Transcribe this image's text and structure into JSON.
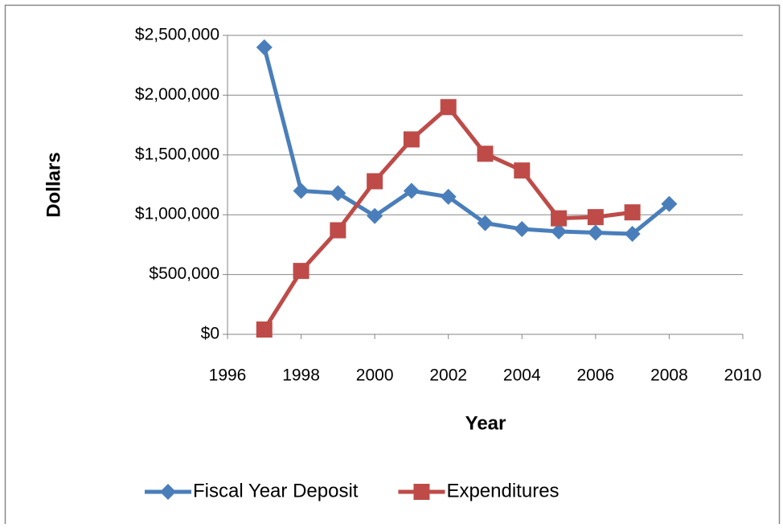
{
  "chart_data": {
    "type": "line",
    "x_label": "Year",
    "y_label": "Dollars",
    "x": [
      1997,
      1998,
      1999,
      2000,
      2001,
      2002,
      2003,
      2004,
      2005,
      2006,
      2007,
      2008
    ],
    "series": [
      {
        "name": "Fiscal Year Deposit",
        "color": "#4a7ebb",
        "marker": "diamond",
        "values": [
          2400000,
          1200000,
          1180000,
          990000,
          1200000,
          1150000,
          930000,
          880000,
          860000,
          850000,
          840000,
          1090000
        ]
      },
      {
        "name": "Expenditures",
        "color": "#be4b48",
        "marker": "square",
        "values": [
          40000,
          530000,
          870000,
          1280000,
          1630000,
          1900000,
          1510000,
          1370000,
          970000,
          980000,
          1020000,
          null
        ]
      }
    ],
    "xlim": [
      1996,
      2010
    ],
    "xticks": [
      1996,
      1998,
      2000,
      2002,
      2004,
      2006,
      2008,
      2010
    ],
    "ylim": [
      0,
      2500000
    ],
    "yticks": [
      {
        "value": 0,
        "label": "$0"
      },
      {
        "value": 500000,
        "label": "$500,000"
      },
      {
        "value": 1000000,
        "label": "$1,000,000"
      },
      {
        "value": 1500000,
        "label": "$1,500,000"
      },
      {
        "value": 2000000,
        "label": "$2,000,000"
      },
      {
        "value": 2500000,
        "label": "$2,500,000"
      }
    ],
    "grid": true,
    "legend": "bottom"
  }
}
